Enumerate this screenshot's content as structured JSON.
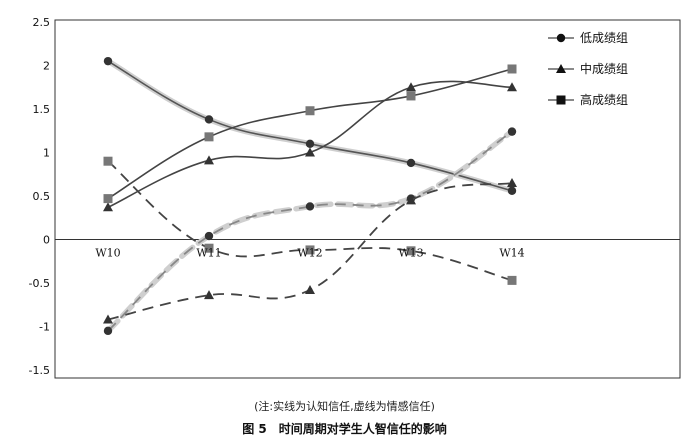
{
  "chart_data": {
    "type": "line",
    "categories": [
      "W10",
      "W11",
      "W12",
      "W13",
      "W14"
    ],
    "yticks": [
      "2.5",
      "2",
      "1.5",
      "1",
      "0.5",
      "0",
      "-0.5",
      "-1",
      "-1.5"
    ],
    "ylim": [
      -1.5,
      2.5
    ],
    "legend_position": "top-right",
    "legend": [
      {
        "name": "低成绩组",
        "marker": "circle"
      },
      {
        "name": "中成绩组",
        "marker": "triangle"
      },
      {
        "name": "高成绩组",
        "marker": "square"
      }
    ],
    "series": [
      {
        "group": "低成绩组",
        "style": "solid",
        "marker": "circle",
        "color": "#555555",
        "values": [
          2.05,
          1.38,
          1.1,
          0.88,
          0.56
        ]
      },
      {
        "group": "中成绩组",
        "style": "solid",
        "marker": "triangle",
        "color": "#444444",
        "values": [
          0.37,
          0.91,
          1.0,
          1.75,
          1.75
        ]
      },
      {
        "group": "高成绩组",
        "style": "solid",
        "marker": "square",
        "color": "#444444",
        "values": [
          0.47,
          1.18,
          1.48,
          1.65,
          1.96
        ]
      },
      {
        "group": "低成绩组",
        "style": "dashed",
        "marker": "circle",
        "color": "#888888",
        "values": [
          -1.05,
          0.04,
          0.38,
          0.47,
          1.24
        ]
      },
      {
        "group": "中成绩组",
        "style": "dashed",
        "marker": "triangle",
        "color": "#444444",
        "values": [
          -0.92,
          -0.64,
          -0.58,
          0.45,
          0.65
        ]
      },
      {
        "group": "高成绩组",
        "style": "dashed",
        "marker": "square",
        "color": "#444444",
        "values": [
          0.9,
          -0.1,
          -0.12,
          -0.13,
          -0.47
        ]
      }
    ]
  },
  "note": "(注:实线为认知信任,虚线为情感信任)",
  "caption": "图 5　时间周期对学生人智信任的影响"
}
